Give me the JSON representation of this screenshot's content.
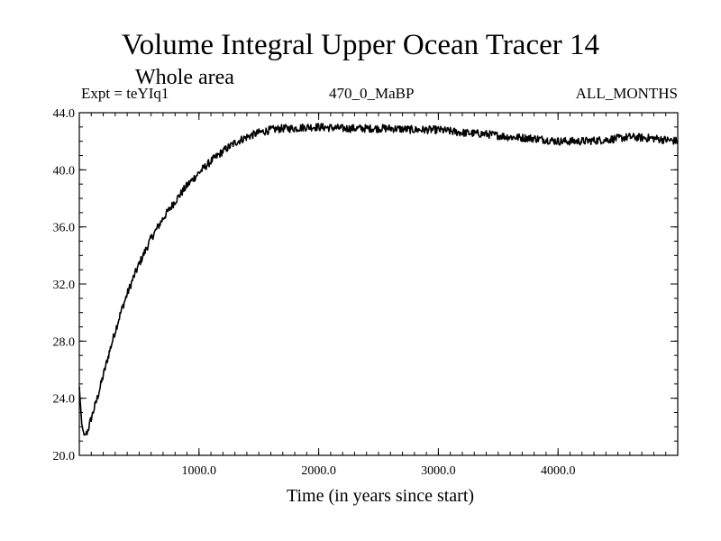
{
  "chart_data": {
    "type": "line",
    "title": "Volume Integral Upper Ocean Tracer 14",
    "subtitle": "Whole area",
    "experiment": "Expt = teYIq1",
    "run_label": "470_0_MaBP",
    "period_label": "ALL_MONTHS",
    "xlabel": "Time (in years since start)",
    "ylabel": "",
    "xlim": [
      0,
      5000
    ],
    "ylim": [
      20,
      44
    ],
    "xticks": [
      1000,
      2000,
      3000,
      4000
    ],
    "xtick_labels": [
      "1000.0",
      "2000.0",
      "3000.0",
      "4000.0"
    ],
    "yticks": [
      20,
      24,
      28,
      32,
      36,
      40,
      44
    ],
    "ytick_labels": [
      "20.0",
      "24.0",
      "28.0",
      "32.0",
      "36.0",
      "40.0",
      "44.0"
    ],
    "grid": false,
    "series": [
      {
        "name": "Volume Integral Upper Ocean Tracer 14",
        "x": [
          0,
          20,
          40,
          60,
          80,
          100,
          150,
          200,
          250,
          300,
          350,
          400,
          450,
          500,
          600,
          700,
          800,
          900,
          1000,
          1100,
          1200,
          1300,
          1400,
          1500,
          1600,
          1700,
          1800,
          1900,
          2000,
          2200,
          2400,
          2600,
          2800,
          3000,
          3200,
          3400,
          3600,
          3800,
          4000,
          4200,
          4400,
          4600,
          4800,
          5000
        ],
        "values": [
          24.8,
          22.2,
          21.4,
          21.5,
          22.0,
          22.6,
          24.0,
          25.6,
          27.2,
          28.7,
          30.1,
          31.3,
          32.4,
          33.4,
          35.2,
          36.6,
          37.8,
          38.9,
          39.8,
          40.6,
          41.3,
          41.9,
          42.3,
          42.6,
          42.8,
          42.9,
          42.9,
          43.0,
          43.0,
          42.9,
          42.9,
          42.9,
          42.8,
          42.8,
          42.6,
          42.5,
          42.3,
          42.2,
          42.0,
          42.0,
          42.1,
          42.3,
          42.2,
          42.0
        ]
      }
    ]
  }
}
